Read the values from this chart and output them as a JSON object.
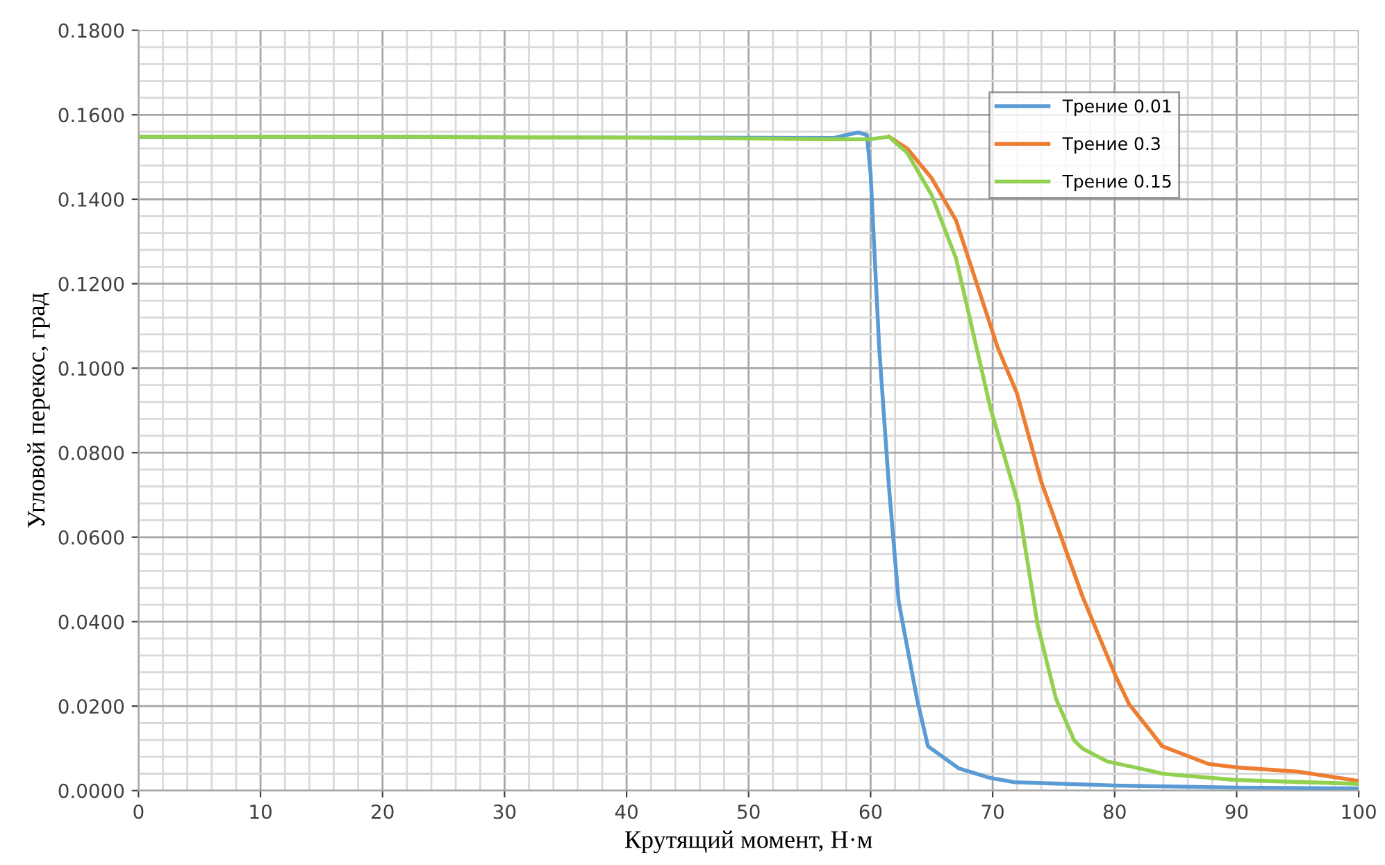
{
  "chart_data": {
    "type": "line",
    "xlabel": "Крутящий момент, Н·м",
    "ylabel": "Угловой перекос, град",
    "xlim": [
      0,
      100
    ],
    "xticks": [
      0,
      10,
      20,
      30,
      40,
      50,
      60,
      70,
      80,
      90,
      100
    ],
    "ylim": [
      0,
      0.18
    ],
    "yticks": [
      {
        "value": 0,
        "label": "0.0000"
      },
      {
        "value": 0.02,
        "label": "0.0200"
      },
      {
        "value": 0.04,
        "label": "0.0400"
      },
      {
        "value": 0.06,
        "label": "0.0600"
      },
      {
        "value": 0.08,
        "label": "0.0800"
      },
      {
        "value": 0.1,
        "label": "0.1000"
      },
      {
        "value": 0.12,
        "label": "0.1200"
      },
      {
        "value": 0.14,
        "label": "0.1400"
      },
      {
        "value": 0.16,
        "label": "0.1600"
      },
      {
        "value": 0.18,
        "label": "0.1800"
      }
    ],
    "grid": true,
    "legend": "top right",
    "marker": "none",
    "line_style": "solid",
    "series": [
      {
        "name": "Трение 0.01",
        "color": "#5b9bd5",
        "x": [
          0,
          20,
          40,
          57,
          58,
          59,
          59.7,
          60,
          60.7,
          61.5,
          62.3,
          63.8,
          64.7,
          67.2,
          69.8,
          71.8,
          80,
          90,
          100
        ],
        "values": [
          0.1548,
          0.1548,
          0.1546,
          0.1545,
          0.1552,
          0.1558,
          0.1552,
          0.146,
          0.105,
          0.072,
          0.0447,
          0.0217,
          0.0105,
          0.0053,
          0.003,
          0.002,
          0.0012,
          0.0007,
          0.0005
        ]
      },
      {
        "name": "Трение 0.3",
        "color": "#ed7d31",
        "x": [
          61.5,
          63,
          65,
          67,
          70.4,
          72,
          74,
          77.4,
          80.1,
          81.2,
          83.1,
          83.9,
          87.7,
          90,
          95,
          100
        ],
        "values": [
          0.1548,
          0.152,
          0.145,
          0.135,
          0.105,
          0.094,
          0.073,
          0.0457,
          0.027,
          0.0204,
          0.0135,
          0.0105,
          0.0063,
          0.0055,
          0.0045,
          0.0023
        ]
      },
      {
        "name": "Трение 0.15",
        "color": "#92d050",
        "x": [
          0,
          20,
          40,
          57,
          60,
          61.5,
          63,
          65,
          67,
          69.8,
          72.1,
          73.7,
          75.2,
          76.7,
          77.4,
          79.4,
          83.1,
          83.9,
          90,
          100
        ],
        "values": [
          0.1548,
          0.1548,
          0.1546,
          0.1542,
          0.1542,
          0.1548,
          0.151,
          0.141,
          0.126,
          0.0908,
          0.0678,
          0.039,
          0.0217,
          0.0118,
          0.0099,
          0.0069,
          0.0046,
          0.004,
          0.0025,
          0.0016
        ]
      }
    ]
  }
}
